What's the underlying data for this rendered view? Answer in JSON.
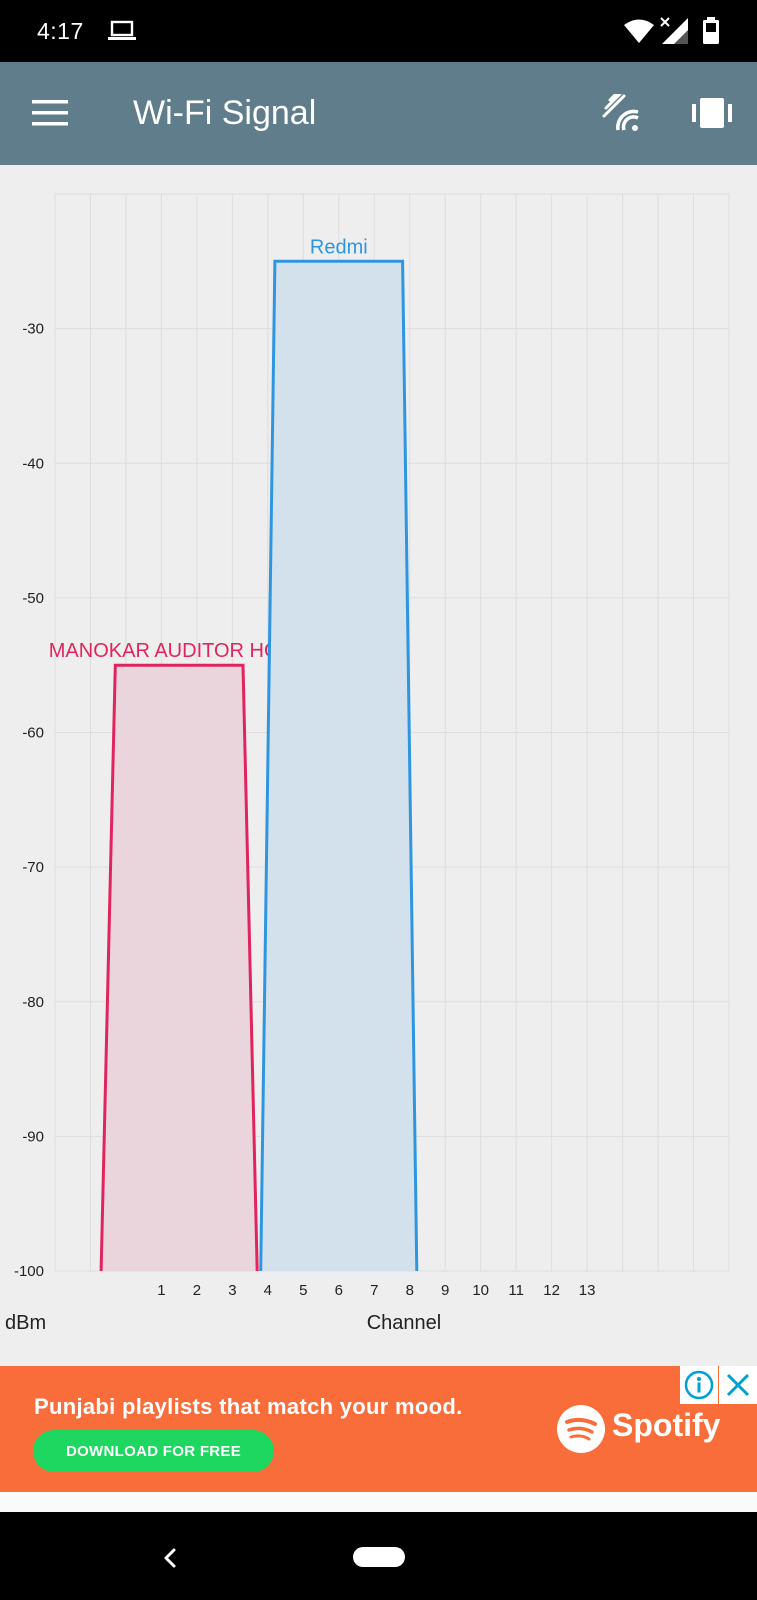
{
  "status_bar": {
    "time": "4:17",
    "icons": [
      "laptop-icon",
      "wifi-icon",
      "cell-signal-icon",
      "battery-icon"
    ]
  },
  "app_bar": {
    "title": "Wi-Fi Signal",
    "icons": [
      "menu-icon",
      "scan-icon",
      "vibrate-icon"
    ],
    "background": "#607d8b"
  },
  "chart_data": {
    "type": "area",
    "xlabel": "Channel",
    "ylabel": "dBm",
    "x_ticks": [
      "1",
      "2",
      "3",
      "4",
      "5",
      "6",
      "7",
      "8",
      "9",
      "10",
      "11",
      "12",
      "13"
    ],
    "y_ticks": [
      "-30",
      "-40",
      "-50",
      "-60",
      "-70",
      "-80",
      "-90",
      "-100"
    ],
    "xlim": [
      -2,
      17
    ],
    "ylim": [
      -100,
      -20
    ],
    "grid": true,
    "series": [
      {
        "name": "MANOKAR AUDITOR HOME",
        "color": "#e0245e",
        "fill": "#ead5dd",
        "points": [
          [
            -0.7,
            -100
          ],
          [
            -0.3,
            -55
          ],
          [
            3.3,
            -55
          ],
          [
            3.7,
            -100
          ]
        ]
      },
      {
        "name": "Redmi",
        "color": "#2e96e0",
        "fill": "#d3e1ed",
        "points": [
          [
            3.8,
            -100
          ],
          [
            4.2,
            -25
          ],
          [
            7.8,
            -25
          ],
          [
            8.2,
            -100
          ]
        ]
      }
    ]
  },
  "ad": {
    "text": "Punjabi playlists that match your mood.",
    "button_label": "DOWNLOAD FOR FREE",
    "brand": "Spotify",
    "info_icon": "info-icon",
    "close_icon": "close-icon",
    "background": "#f86d3a",
    "button_color": "#1ed760"
  },
  "nav_bar": {
    "icons": [
      "back-icon",
      "home-pill"
    ]
  }
}
